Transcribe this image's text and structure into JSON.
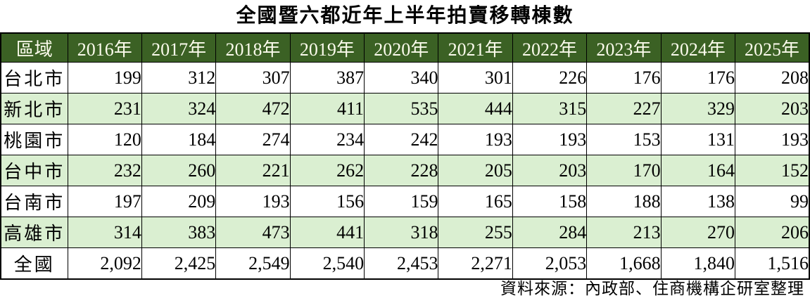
{
  "title": "全國暨六都近年上半年拍賣移轉棟數",
  "source_note": "資料來源：內政部、住商機構企研室整理",
  "colors": {
    "header_bg": "#3B6124",
    "header_text": "#FBFBEC",
    "alt_row_bg": "#DAEFD1",
    "row_bg": "#FFFFFF",
    "border": "#000000"
  },
  "chart_data": {
    "type": "table",
    "title": "全國暨六都近年上半年拍賣移轉棟數",
    "columns": [
      "區域",
      "2016年",
      "2017年",
      "2018年",
      "2019年",
      "2020年",
      "2021年",
      "2022年",
      "2023年",
      "2024年",
      "2025年"
    ],
    "rows": [
      {
        "region": "台北市",
        "values": [
          "199",
          "312",
          "307",
          "387",
          "340",
          "301",
          "226",
          "176",
          "176",
          "208"
        ]
      },
      {
        "region": "新北市",
        "values": [
          "231",
          "324",
          "472",
          "411",
          "535",
          "444",
          "315",
          "227",
          "329",
          "203"
        ]
      },
      {
        "region": "桃園市",
        "values": [
          "120",
          "184",
          "274",
          "234",
          "242",
          "193",
          "193",
          "153",
          "131",
          "193"
        ]
      },
      {
        "region": "台中市",
        "values": [
          "232",
          "260",
          "221",
          "262",
          "228",
          "205",
          "203",
          "170",
          "164",
          "152"
        ]
      },
      {
        "region": "台南市",
        "values": [
          "197",
          "209",
          "193",
          "156",
          "159",
          "165",
          "158",
          "188",
          "138",
          "99"
        ]
      },
      {
        "region": "高雄市",
        "values": [
          "314",
          "383",
          "473",
          "441",
          "318",
          "255",
          "284",
          "213",
          "270",
          "206"
        ]
      },
      {
        "region": "全國",
        "values": [
          "2,092",
          "2,425",
          "2,549",
          "2,540",
          "2,453",
          "2,271",
          "2,053",
          "1,668",
          "1,840",
          "1,516"
        ]
      }
    ]
  }
}
